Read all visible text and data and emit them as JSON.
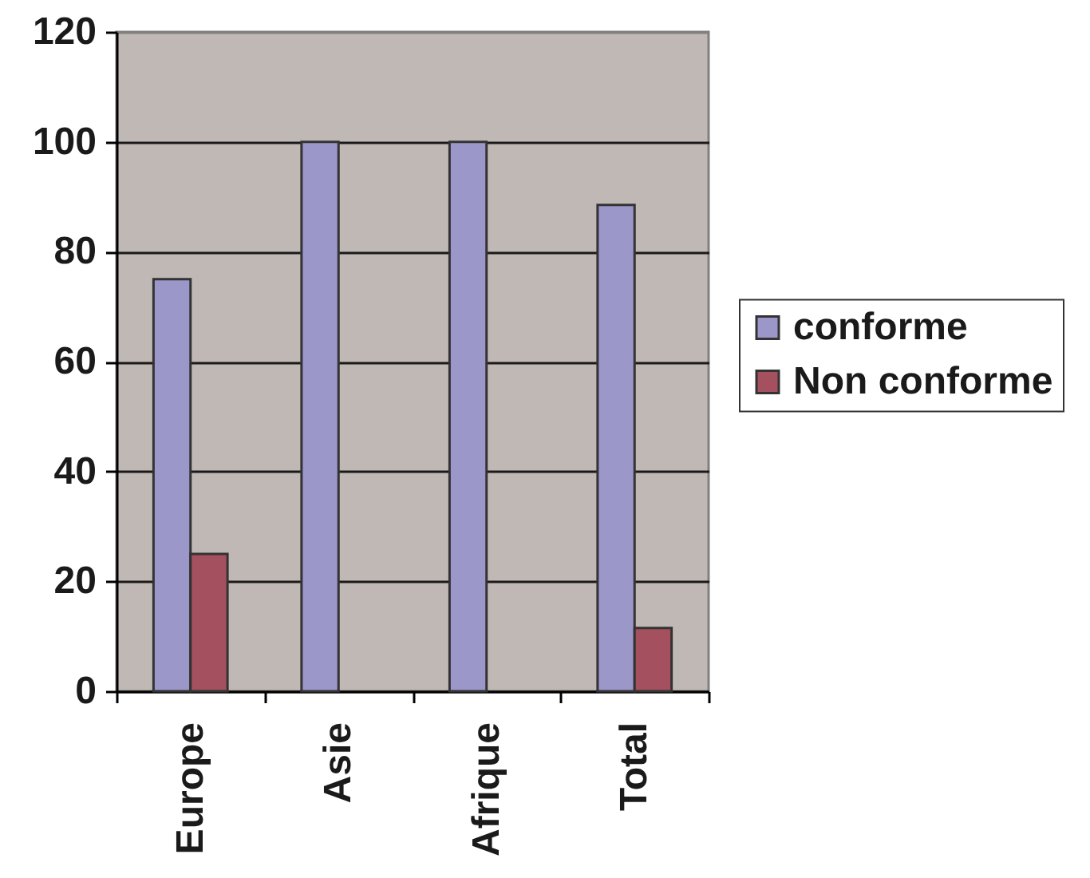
{
  "chart_data": {
    "type": "bar",
    "categories": [
      "Europe",
      "Asie",
      "Afrique",
      "Total"
    ],
    "series": [
      {
        "name": "conforme",
        "color": "#9b97c9",
        "values": [
          75,
          100,
          100,
          88.5
        ]
      },
      {
        "name": "Non conforme",
        "color": "#a5505e",
        "values": [
          25,
          null,
          null,
          11.5
        ]
      }
    ],
    "ylim": [
      0,
      120
    ],
    "yticks": [
      0,
      20,
      40,
      60,
      80,
      100,
      120
    ],
    "grid": "y",
    "legend": "right"
  }
}
